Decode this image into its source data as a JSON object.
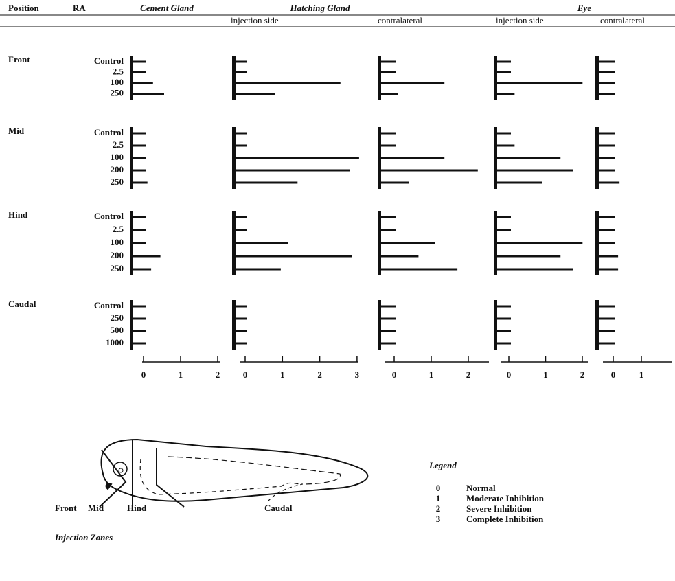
{
  "headers": {
    "position": "Position",
    "ra": "RA"
  },
  "column_groups": [
    "Hatching Gland",
    "Eye"
  ],
  "row_groups": [
    {
      "position": "Front",
      "doses": [
        "Control",
        "2.5",
        "100",
        "250"
      ]
    },
    {
      "position": "Mid",
      "doses": [
        "Control",
        "2.5",
        "100",
        "200",
        "250"
      ]
    },
    {
      "position": "Hind",
      "doses": [
        "Control",
        "2.5",
        "100",
        "200",
        "250"
      ]
    },
    {
      "position": "Caudal",
      "doses": [
        "Control",
        "250",
        "500",
        "1000"
      ]
    }
  ],
  "chart_data": [
    {
      "type": "bar",
      "orientation": "horizontal",
      "title": "Cement Gland",
      "color": "#111111",
      "values": [
        [
          0,
          0,
          0.2,
          0.5
        ],
        [
          0,
          0,
          0,
          0,
          0.05
        ],
        [
          0,
          0,
          0,
          0.4,
          0.15
        ],
        [
          0,
          0,
          0,
          0
        ]
      ],
      "xlim": [
        0,
        2
      ],
      "xticks": [
        0,
        1,
        2
      ]
    },
    {
      "type": "bar",
      "orientation": "horizontal",
      "title": "injection side",
      "color": "#111111",
      "values": [
        [
          0,
          0,
          2.5,
          0.75
        ],
        [
          0,
          0,
          3,
          2.75,
          1.35
        ],
        [
          0,
          0,
          1.1,
          2.8,
          0.9
        ],
        [
          0,
          0,
          0,
          0
        ]
      ],
      "xlim": [
        0,
        3
      ],
      "xticks": [
        0,
        1,
        2,
        3
      ]
    },
    {
      "type": "bar",
      "orientation": "horizontal",
      "title": "contralateral",
      "color": "#111111",
      "values": [
        [
          0,
          0,
          1.3,
          0.05
        ],
        [
          0,
          0,
          1.3,
          2.2,
          0.35
        ],
        [
          0,
          0,
          1.05,
          0.6,
          1.65
        ],
        [
          0,
          0,
          0,
          0
        ]
      ],
      "xlim": [
        0,
        2
      ],
      "xticks": [
        0,
        1,
        2
      ]
    },
    {
      "type": "bar",
      "orientation": "horizontal",
      "title": "injection side",
      "color": "#111111",
      "values": [
        [
          0,
          0,
          1.95,
          0.1
        ],
        [
          0,
          0.1,
          1.35,
          1.7,
          0.85
        ],
        [
          0,
          0,
          1.95,
          1.35,
          1.7
        ],
        [
          0,
          0,
          0,
          0
        ]
      ],
      "xlim": [
        0,
        2
      ],
      "xticks": [
        0,
        1,
        2
      ]
    },
    {
      "type": "bar",
      "orientation": "horizontal",
      "title": "contralateral",
      "color": "#111111",
      "values": [
        [
          0,
          0,
          0,
          0
        ],
        [
          0,
          0,
          0,
          0,
          0.15
        ],
        [
          0,
          0,
          0,
          0.1,
          0.1
        ],
        [
          0,
          0,
          0,
          0
        ]
      ],
      "xlim": [
        0,
        2
      ],
      "xticks": [
        0,
        1
      ]
    }
  ],
  "diagram": {
    "zones": [
      "Front",
      "Mid",
      "Hind",
      "Caudal"
    ],
    "caption": "Injection Zones"
  },
  "legend": {
    "title": "Legend",
    "entries": [
      {
        "code": 0,
        "label": "Normal"
      },
      {
        "code": 1,
        "label": "Moderate Inhibition"
      },
      {
        "code": 2,
        "label": "Severe Inhibition"
      },
      {
        "code": 3,
        "label": "Complete Inhibition"
      }
    ]
  }
}
